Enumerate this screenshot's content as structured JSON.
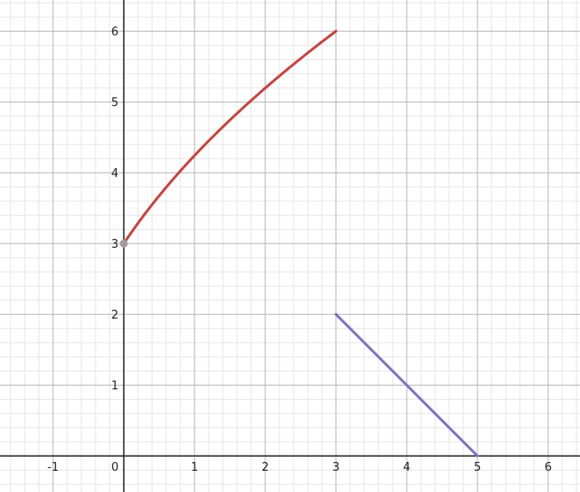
{
  "chart_data": {
    "type": "line",
    "xlim": [
      -1.75,
      6.45
    ],
    "ylim": [
      -0.51,
      6.44
    ],
    "grid": true,
    "minor_grid_step": 0.2,
    "major_grid_step": 1,
    "x_tick_labels": [
      "-1",
      "0",
      "1",
      "2",
      "3",
      "4",
      "5",
      "6"
    ],
    "y_tick_labels": [
      "1",
      "2",
      "3",
      "4",
      "5",
      "6"
    ],
    "series": [
      {
        "color": "#c74440",
        "function": "y = 3*sqrt(x+1)",
        "domain": [
          0,
          3
        ],
        "x": [
          0,
          0.5,
          1,
          1.5,
          2,
          2.5,
          3
        ],
        "y": [
          3,
          3.674,
          4.243,
          4.743,
          5.196,
          5.612,
          6
        ]
      },
      {
        "color": "#7f72c8",
        "function": "y = 5 - x",
        "domain": [
          3,
          5
        ],
        "x": [
          3,
          4,
          5
        ],
        "y": [
          2,
          1,
          0
        ]
      }
    ],
    "points": [
      {
        "x": 0,
        "y": 3,
        "color": "#9e9e9e"
      }
    ]
  }
}
